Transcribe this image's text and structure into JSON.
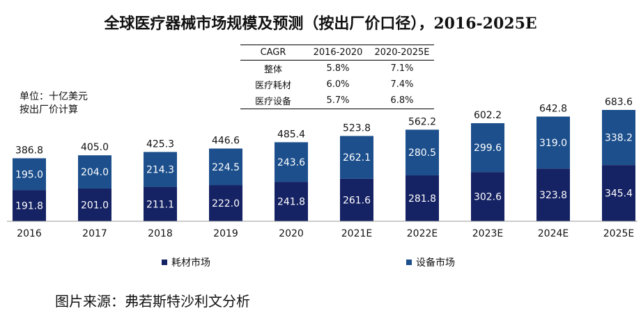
{
  "title": "全球医疗器械市场规模及预测（按出厂价口径），2016-2025E",
  "unit_line1": "单位：十亿美元",
  "unit_line2": "按出厂价计算",
  "cagr_table": {
    "header": [
      "CAGR",
      "2016-2020",
      "2020-2025E"
    ],
    "rows": [
      [
        "整体",
        "5.8%",
        "7.1%"
      ],
      [
        "医疗耗材",
        "6.0%",
        "7.4%"
      ],
      [
        "医疗设备",
        "5.7%",
        "6.8%"
      ]
    ]
  },
  "legend": {
    "consumables": "耗材市场",
    "equipment": "设备市场"
  },
  "source": "图片来源：弗若斯特沙利文分析",
  "colors": {
    "consumables": "#152263",
    "equipment": "#1c4f8c"
  },
  "chart_data": {
    "type": "bar",
    "stacked": true,
    "categories": [
      "2016",
      "2017",
      "2018",
      "2019",
      "2020",
      "2021E",
      "2022E",
      "2023E",
      "2024E",
      "2025E"
    ],
    "series": [
      {
        "name": "耗材市场",
        "values": [
          191.8,
          201.0,
          211.1,
          222.0,
          241.8,
          261.6,
          281.8,
          302.6,
          323.8,
          345.4
        ]
      },
      {
        "name": "设备市场",
        "values": [
          195.0,
          204.0,
          214.3,
          224.5,
          243.6,
          262.1,
          280.5,
          299.6,
          319.0,
          338.2
        ]
      }
    ],
    "totals": [
      386.8,
      405.0,
      425.3,
      446.6,
      485.4,
      523.8,
      562.2,
      602.2,
      642.8,
      683.6
    ],
    "ylim": [
      0,
      683.6
    ]
  }
}
